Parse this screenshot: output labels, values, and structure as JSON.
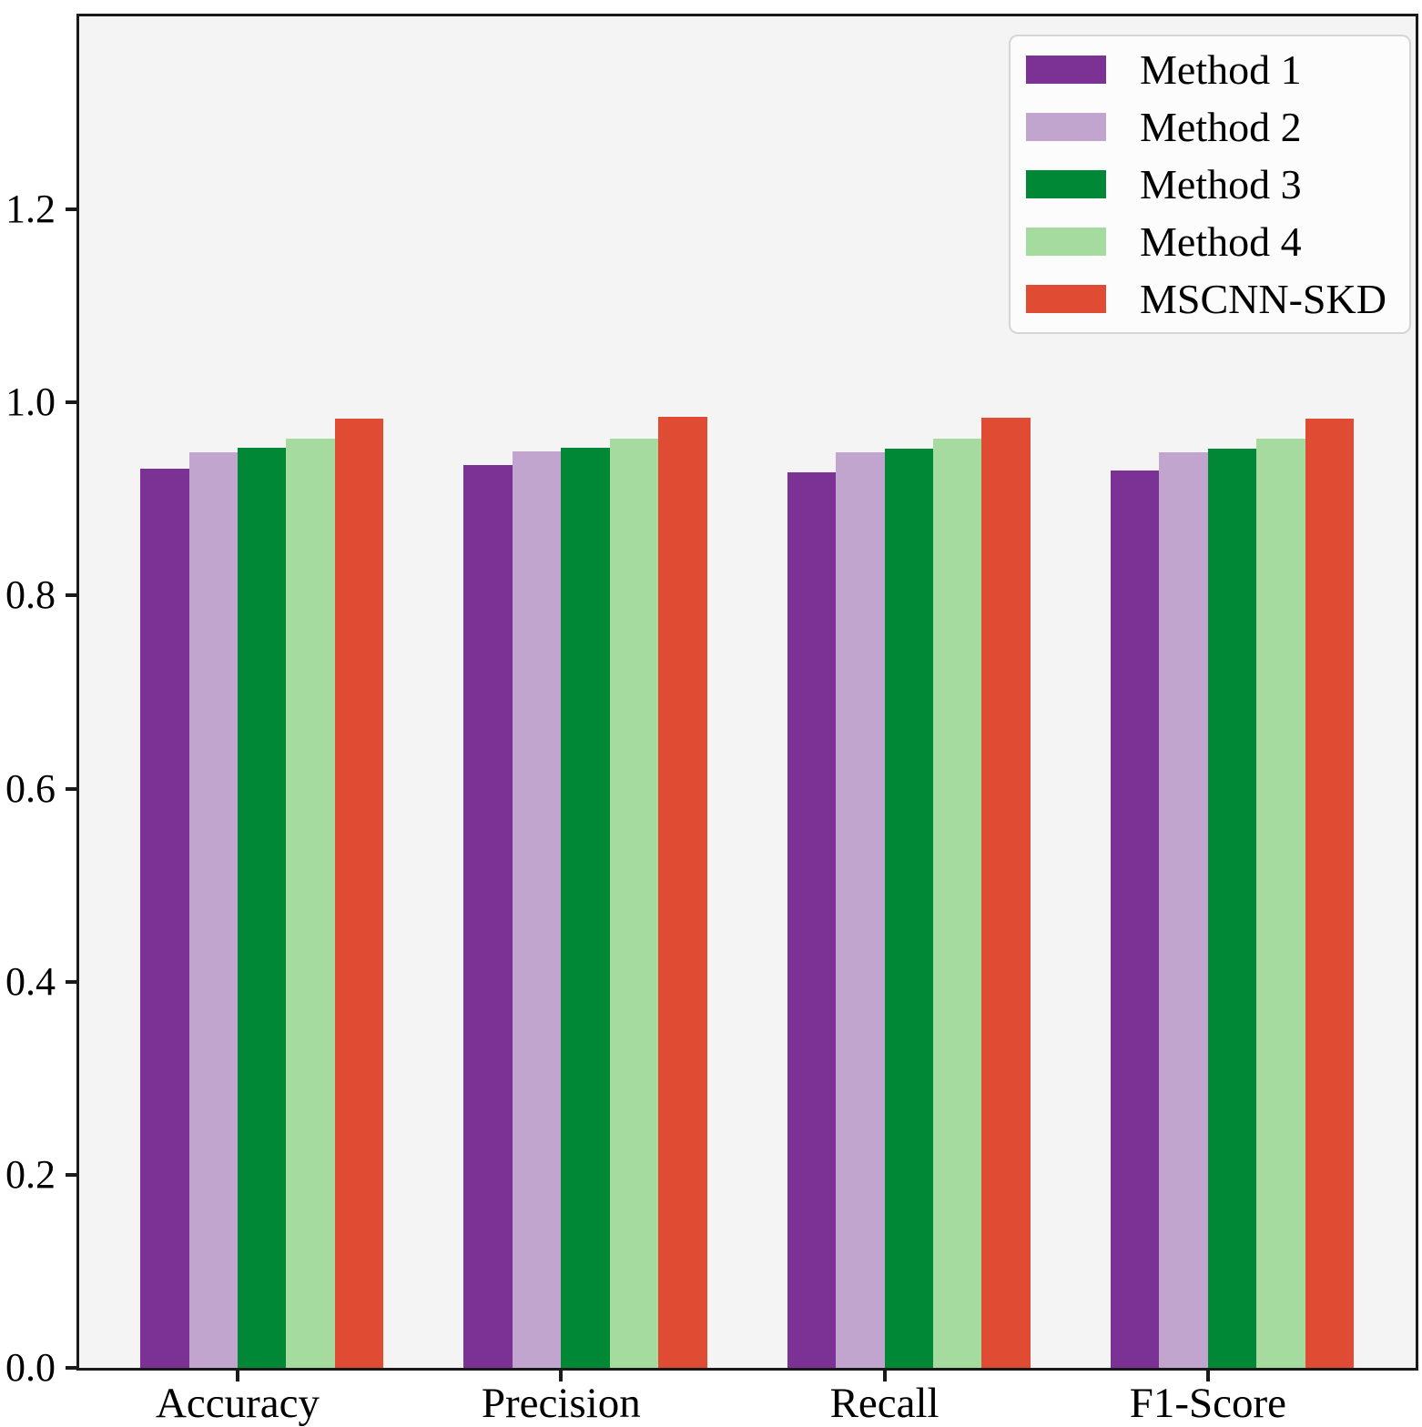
{
  "chart_data": {
    "type": "bar",
    "title": "",
    "xlabel": "",
    "ylabel": "",
    "categories": [
      "Accuracy",
      "Precision",
      "Recall",
      "F1-Score"
    ],
    "series": [
      {
        "name": "Method 1",
        "color": "#7b3294",
        "values": [
          0.931,
          0.935,
          0.928,
          0.93
        ]
      },
      {
        "name": "Method 2",
        "color": "#c2a5cf",
        "values": [
          0.948,
          0.949,
          0.948,
          0.948
        ]
      },
      {
        "name": "Method 3",
        "color": "#008837",
        "values": [
          0.953,
          0.953,
          0.952,
          0.952
        ]
      },
      {
        "name": "Method 4",
        "color": "#a6dba0",
        "values": [
          0.963,
          0.963,
          0.963,
          0.963
        ]
      },
      {
        "name": "MSCNN-SKD",
        "color": "#e04b33",
        "values": [
          0.983,
          0.985,
          0.984,
          0.983
        ]
      }
    ],
    "ylim": [
      0,
      1.4
    ],
    "yticks": [
      "0.0",
      "0.2",
      "0.4",
      "0.6",
      "0.8",
      "1.0",
      "1.2"
    ],
    "ytick_values": [
      0.0,
      0.2,
      0.4,
      0.6,
      0.8,
      1.0,
      1.2
    ],
    "grid": false,
    "legend_position": "upper right"
  },
  "colors": {
    "figure_background": "#ffffff",
    "plot_background": "#f4f4f4",
    "axis": "#1a1a1a",
    "text": "#000000",
    "legend_background": "#fcfcfc",
    "legend_border": "#d6d6d6"
  }
}
